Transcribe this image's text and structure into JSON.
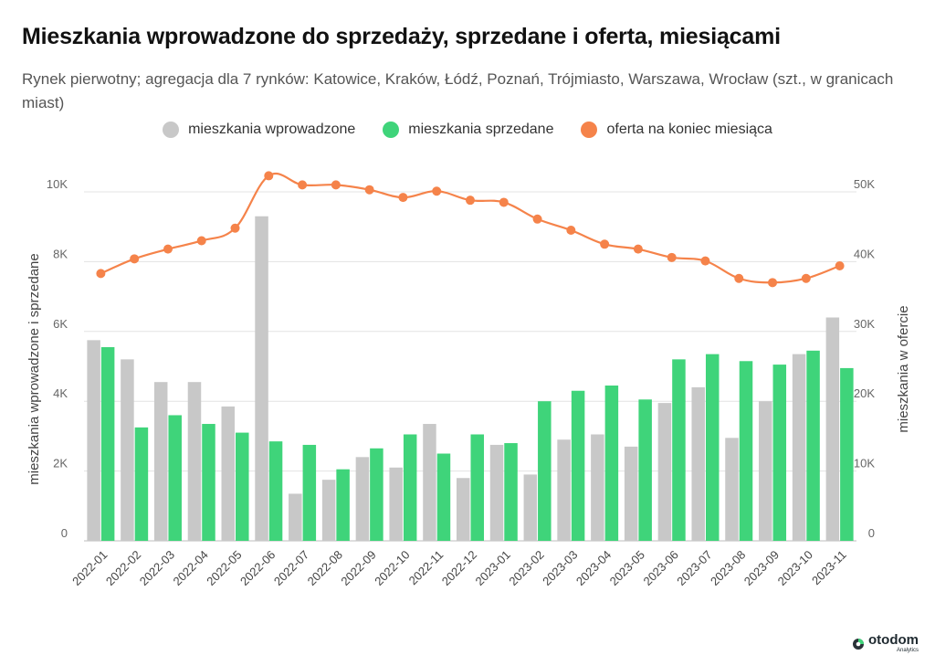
{
  "title": "Mieszkania wprowadzone do sprzedaży, sprzedane i oferta, miesiącami",
  "subtitle": "Rynek pierwotny; agregacja dla 7 rynków: Katowice, Kraków, Łódź, Poznań, Trójmiasto, Warszawa, Wrocław (szt., w granicach miast)",
  "legend": [
    {
      "label": "mieszkania wprowadzone",
      "color": "#c8c8c8"
    },
    {
      "label": "mieszkania sprzedane",
      "color": "#3fd47a"
    },
    {
      "label": "oferta na koniec miesiąca",
      "color": "#f5834a"
    }
  ],
  "logo": {
    "name": "otodom",
    "sub": "Analytics"
  },
  "chart_data": {
    "type": "bar+line",
    "categories": [
      "2022-01",
      "2022-02",
      "2022-03",
      "2022-04",
      "2022-05",
      "2022-06",
      "2022-07",
      "2022-08",
      "2022-09",
      "2022-10",
      "2022-11",
      "2022-12",
      "2023-01",
      "2023-02",
      "2023-03",
      "2023-04",
      "2023-05",
      "2023-06",
      "2023-07",
      "2023-08",
      "2023-09",
      "2023-10",
      "2023-11"
    ],
    "series": [
      {
        "name": "mieszkania wprowadzone",
        "axis": "left",
        "kind": "bar",
        "color": "#c8c8c8",
        "values": [
          5750,
          5200,
          4550,
          4550,
          3850,
          9300,
          1350,
          1750,
          2400,
          2100,
          3350,
          1800,
          2750,
          1900,
          2900,
          3050,
          2700,
          3950,
          4400,
          2950,
          4000,
          5350,
          6400
        ]
      },
      {
        "name": "mieszkania sprzedane",
        "axis": "left",
        "kind": "bar",
        "color": "#3fd47a",
        "values": [
          5550,
          3250,
          3600,
          3350,
          3100,
          2850,
          2750,
          2050,
          2650,
          3050,
          2500,
          3050,
          2800,
          4000,
          4300,
          4450,
          4050,
          5200,
          5350,
          5150,
          5050,
          5450,
          4950
        ]
      },
      {
        "name": "oferta na koniec miesiąca",
        "axis": "right",
        "kind": "line",
        "color": "#f5834a",
        "values": [
          38300,
          40400,
          41800,
          43000,
          44800,
          52300,
          51000,
          51000,
          50300,
          49200,
          50100,
          48800,
          48500,
          46100,
          44500,
          42500,
          41800,
          40600,
          40100,
          37600,
          37000,
          37600,
          39400
        ]
      }
    ],
    "y_left": {
      "label": "mieszkania wprowadzone i sprzedane",
      "ylim": [
        0,
        10000
      ],
      "ticks": [
        "0",
        "2K",
        "4K",
        "6K",
        "8K",
        "10K"
      ]
    },
    "y_right": {
      "label": "mieszkania w ofercie",
      "ylim": [
        0,
        50000
      ],
      "ticks": [
        "0",
        "10K",
        "20K",
        "30K",
        "40K",
        "50K"
      ]
    },
    "grid": true
  }
}
